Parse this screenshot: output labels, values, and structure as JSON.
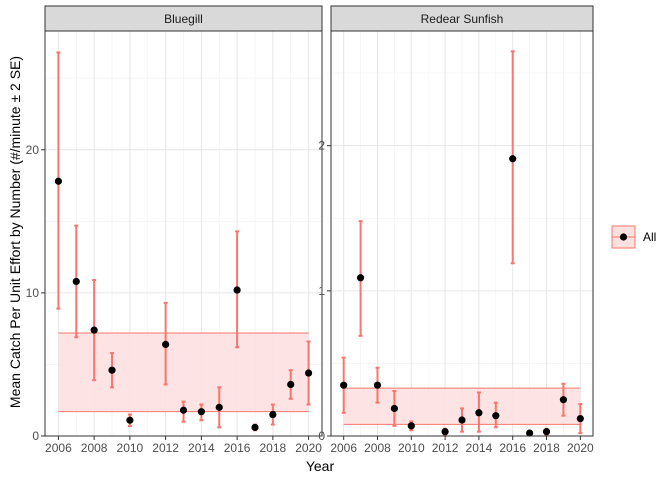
{
  "chart_data": {
    "type": "scatter",
    "xlabel": "Year",
    "ylabel": "Mean Catch Per Unit Effort by Number (#/minute ± 2 SE)",
    "grid": true,
    "legend_position": "right",
    "legend": [
      {
        "name": "All",
        "color": "#F8766D"
      }
    ],
    "colors": {
      "errorbar": "#F8766D",
      "band_fill": "#FDE0E0",
      "band_line": "#F8766D",
      "point": "#000000",
      "strip_bg": "#D9D9D9"
    },
    "panels": [
      {
        "title": "Bluegill",
        "xlim": [
          2005.25,
          2020.75
        ],
        "ylim": [
          0,
          28.3
        ],
        "x_ticks": [
          2006,
          2008,
          2010,
          2012,
          2014,
          2016,
          2018,
          2020
        ],
        "y_ticks": [
          0,
          10,
          20
        ],
        "band": [
          1.7,
          7.2
        ],
        "points": [
          {
            "x": 2006,
            "y": 17.8,
            "lo": 8.9,
            "hi": 26.8
          },
          {
            "x": 2007,
            "y": 10.8,
            "lo": 6.9,
            "hi": 14.7
          },
          {
            "x": 2008,
            "y": 7.4,
            "lo": 3.9,
            "hi": 10.9
          },
          {
            "x": 2009,
            "y": 4.6,
            "lo": 3.4,
            "hi": 5.8
          },
          {
            "x": 2010,
            "y": 1.1,
            "lo": 0.7,
            "hi": 1.5
          },
          {
            "x": 2012,
            "y": 6.4,
            "lo": 3.6,
            "hi": 9.3
          },
          {
            "x": 2013,
            "y": 1.8,
            "lo": 1.0,
            "hi": 2.4
          },
          {
            "x": 2014,
            "y": 1.7,
            "lo": 1.1,
            "hi": 2.2
          },
          {
            "x": 2015,
            "y": 2.0,
            "lo": 0.6,
            "hi": 3.4
          },
          {
            "x": 2016,
            "y": 10.2,
            "lo": 6.2,
            "hi": 14.3
          },
          {
            "x": 2017,
            "y": 0.6,
            "lo": 0.4,
            "hi": 0.8
          },
          {
            "x": 2018,
            "y": 1.5,
            "lo": 0.8,
            "hi": 2.2
          },
          {
            "x": 2019,
            "y": 3.6,
            "lo": 2.6,
            "hi": 4.6
          },
          {
            "x": 2020,
            "y": 4.4,
            "lo": 2.2,
            "hi": 6.6
          }
        ]
      },
      {
        "title": "Redear Sunfish",
        "xlim": [
          2005.25,
          2020.75
        ],
        "ylim": [
          0,
          2.79
        ],
        "x_ticks": [
          2006,
          2008,
          2010,
          2012,
          2014,
          2016,
          2018,
          2020
        ],
        "y_ticks": [
          0,
          1,
          2
        ],
        "band": [
          0.08,
          0.33
        ],
        "points": [
          {
            "x": 2006,
            "y": 0.35,
            "lo": 0.16,
            "hi": 0.54
          },
          {
            "x": 2007,
            "y": 1.09,
            "lo": 0.69,
            "hi": 1.48
          },
          {
            "x": 2008,
            "y": 0.35,
            "lo": 0.23,
            "hi": 0.47
          },
          {
            "x": 2009,
            "y": 0.19,
            "lo": 0.07,
            "hi": 0.31
          },
          {
            "x": 2010,
            "y": 0.07,
            "lo": 0.04,
            "hi": 0.1
          },
          {
            "x": 2012,
            "y": 0.03,
            "lo": 0.01,
            "hi": 0.05
          },
          {
            "x": 2013,
            "y": 0.11,
            "lo": 0.03,
            "hi": 0.19
          },
          {
            "x": 2014,
            "y": 0.16,
            "lo": 0.03,
            "hi": 0.3
          },
          {
            "x": 2015,
            "y": 0.14,
            "lo": 0.06,
            "hi": 0.23
          },
          {
            "x": 2016,
            "y": 1.91,
            "lo": 1.19,
            "hi": 2.65
          },
          {
            "x": 2017,
            "y": 0.02,
            "lo": 0.01,
            "hi": 0.03
          },
          {
            "x": 2018,
            "y": 0.03,
            "lo": 0.01,
            "hi": 0.05
          },
          {
            "x": 2019,
            "y": 0.25,
            "lo": 0.14,
            "hi": 0.36
          },
          {
            "x": 2020,
            "y": 0.12,
            "lo": 0.02,
            "hi": 0.22
          }
        ]
      }
    ]
  }
}
